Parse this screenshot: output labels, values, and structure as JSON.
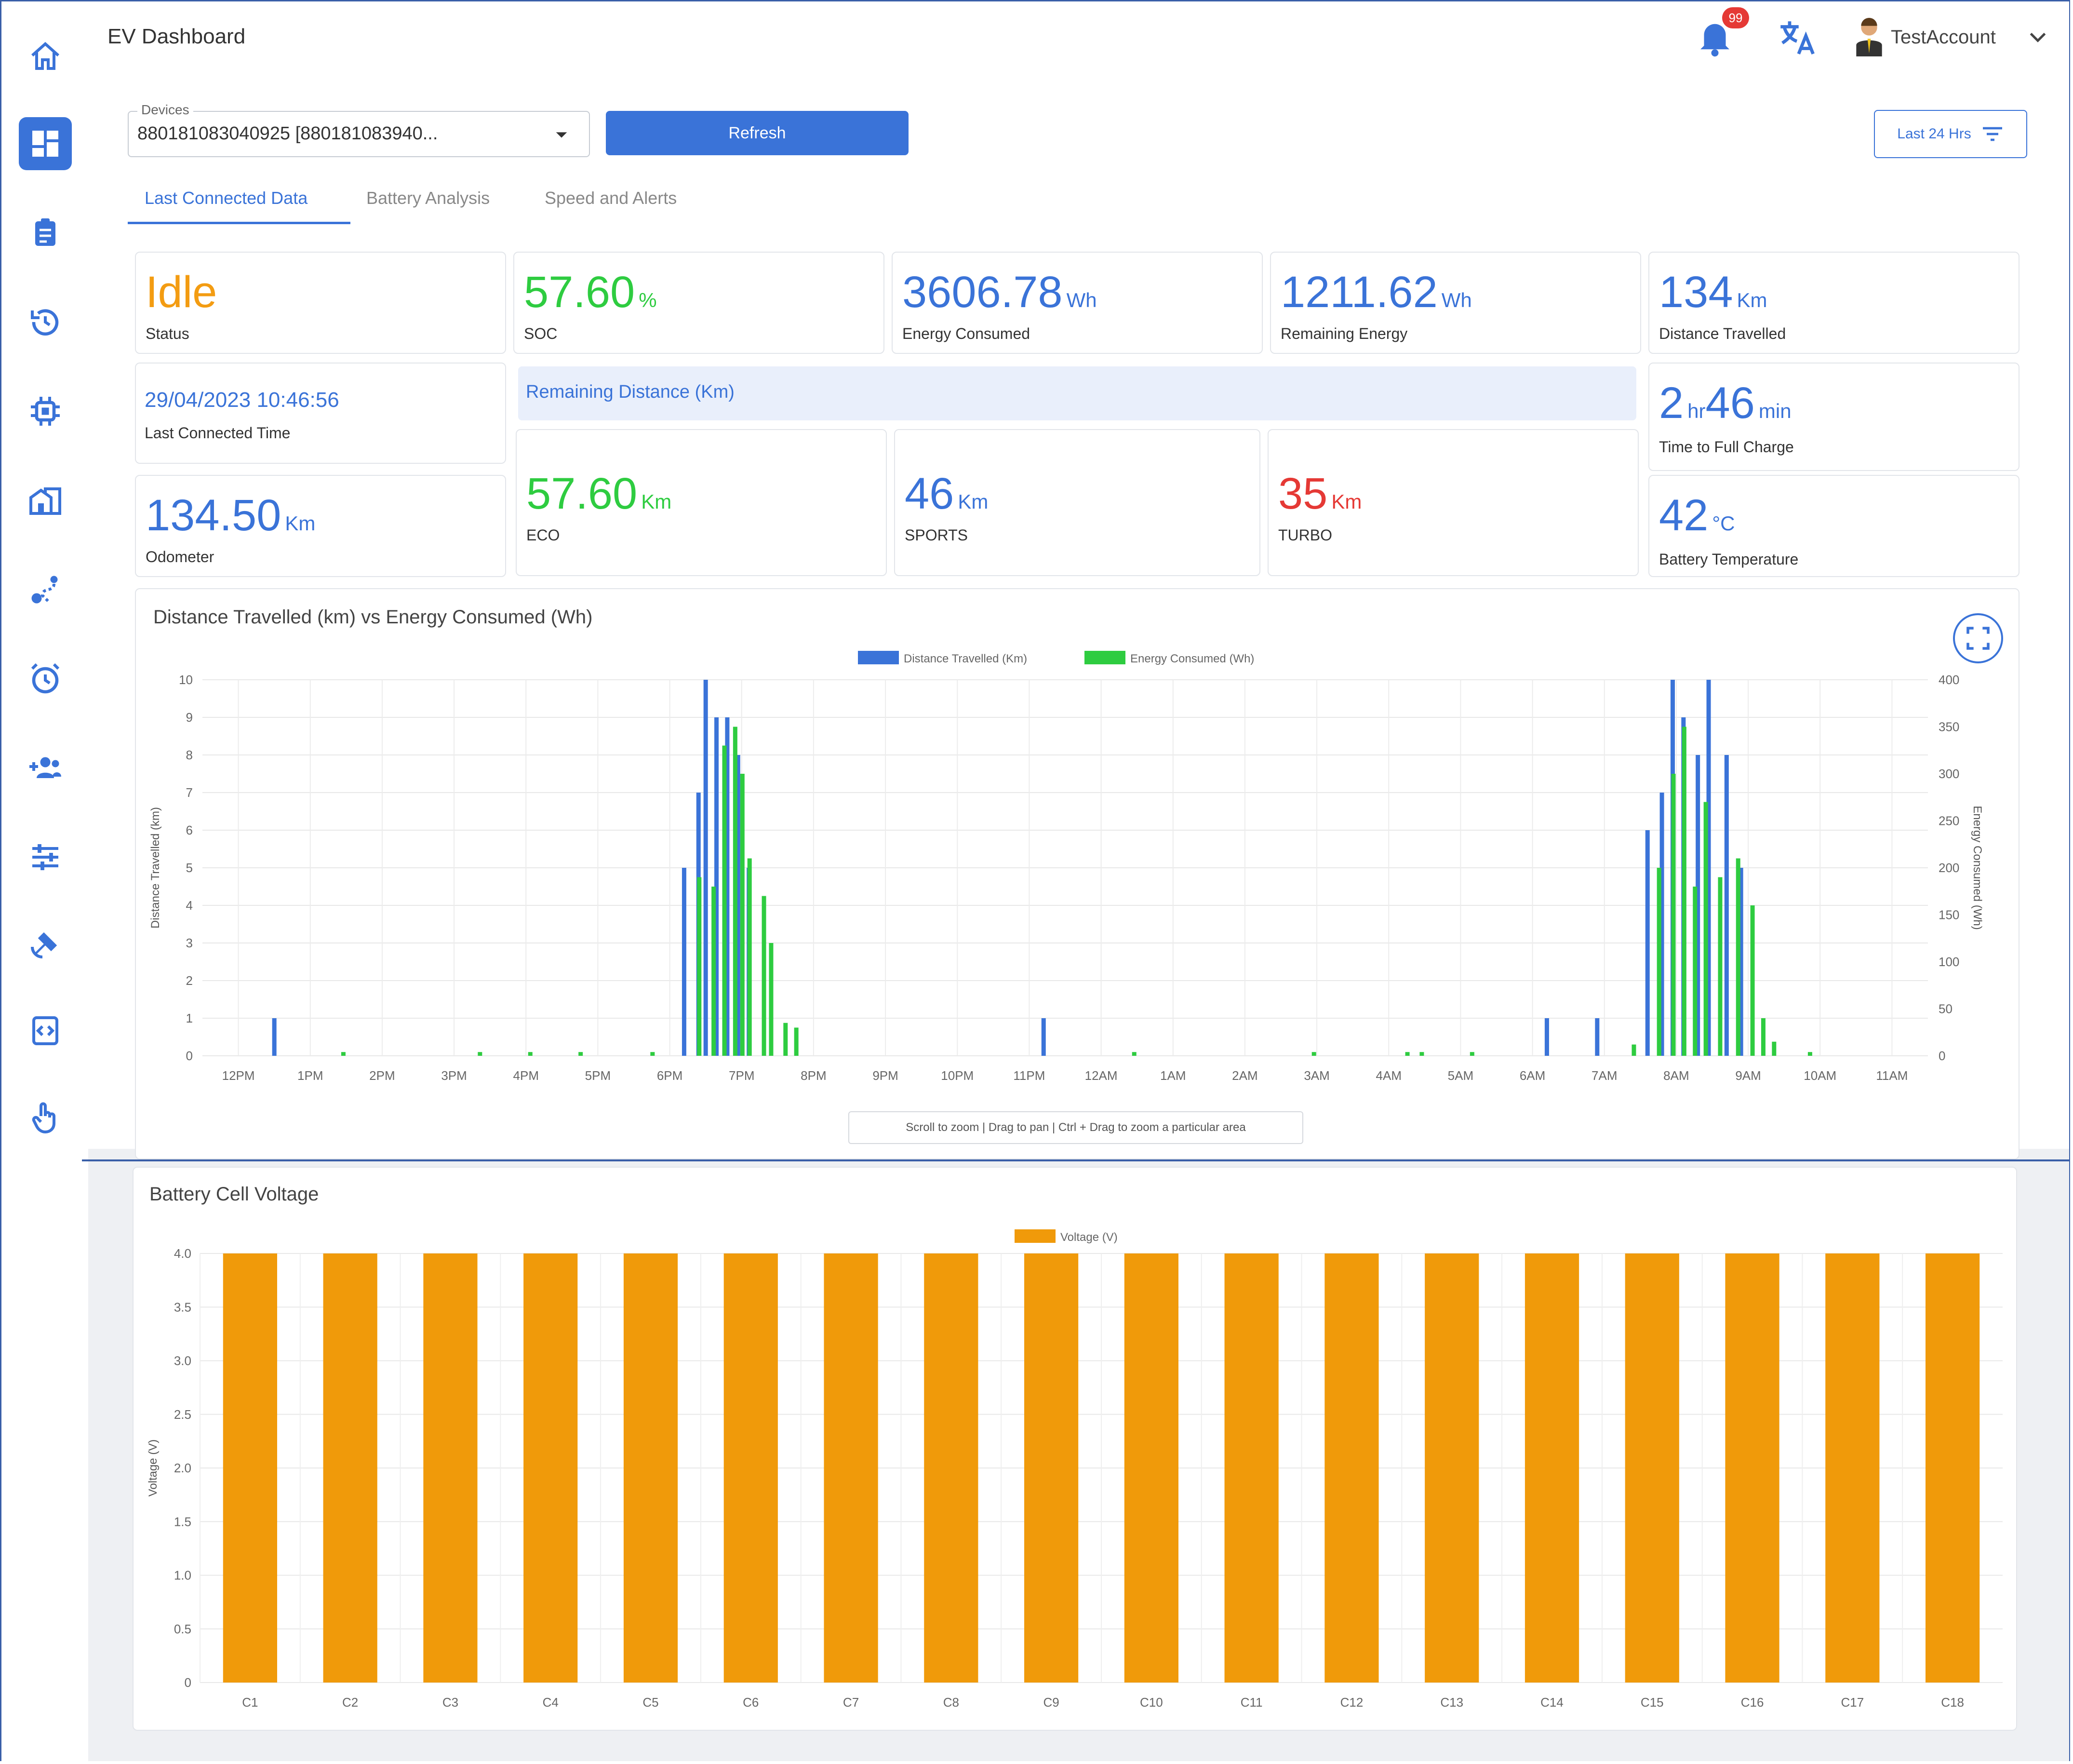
{
  "app": {
    "title": "EV Dashboard"
  },
  "header": {
    "notification_count": "99",
    "account_name": "TestAccount"
  },
  "sidebar": {
    "items": [
      {
        "name": "home-icon"
      },
      {
        "name": "dashboard-icon",
        "active": true
      },
      {
        "name": "clipboard-icon"
      },
      {
        "name": "history-icon"
      },
      {
        "name": "chip-icon"
      },
      {
        "name": "buildings-icon"
      },
      {
        "name": "route-icon"
      },
      {
        "name": "alarm-icon"
      },
      {
        "name": "group-add-icon"
      },
      {
        "name": "sliders-icon"
      },
      {
        "name": "satellite-icon"
      },
      {
        "name": "code-icon"
      },
      {
        "name": "touch-icon"
      }
    ]
  },
  "filters": {
    "device_label": "Devices",
    "device_value": "880181083040925 [880181083940...",
    "refresh_label": "Refresh",
    "range_label": "Last 24 Hrs"
  },
  "tabs": [
    {
      "label": "Last Connected Data",
      "active": true
    },
    {
      "label": "Battery Analysis",
      "active": false
    },
    {
      "label": "Speed and Alerts",
      "active": false
    }
  ],
  "stats": {
    "status": {
      "value": "Idle",
      "label": "Status"
    },
    "soc": {
      "value": "57.60",
      "unit": "%",
      "label": "SOC"
    },
    "energy_consumed": {
      "value": "3606.78",
      "unit": "Wh",
      "label": "Energy Consumed"
    },
    "remaining_energy": {
      "value": "1211.62",
      "unit": "Wh",
      "label": "Remaining Energy"
    },
    "distance_travelled": {
      "value": "134",
      "unit": "Km",
      "label": "Distance Travelled"
    },
    "last_connected": {
      "value": "29/04/2023 10:46:56",
      "label": "Last Connected Time"
    },
    "remaining_distance_title": "Remaining Distance (Km)",
    "time_to_full": {
      "hours": "2",
      "hours_unit": "hr",
      "minutes": "46",
      "minutes_unit": "min",
      "label": "Time to Full Charge"
    },
    "odometer": {
      "value": "134.50",
      "unit": "Km",
      "label": "Odometer"
    },
    "eco": {
      "value": "57.60",
      "unit": "Km",
      "label": "ECO"
    },
    "sports": {
      "value": "46",
      "unit": "Km",
      "label": "SPORTS"
    },
    "turbo": {
      "value": "35",
      "unit": "Km",
      "label": "TURBO"
    },
    "battery_temp": {
      "value": "42",
      "unit": "°C",
      "label": "Battery Temperature"
    }
  },
  "colors": {
    "primary": "#3a73d8",
    "green": "#2ecc40",
    "orange": "#f39c12",
    "red": "#e53935",
    "bar_orange": "#f09a0a"
  },
  "chart_data": [
    {
      "type": "bar",
      "title": "Distance Travelled (km) vs Energy Consumed (Wh)",
      "ylabel": "Distance Travelled (km)",
      "y2label": "Energy Consumed (Wh)",
      "ylim": [
        0,
        10
      ],
      "y2lim": [
        0,
        400
      ],
      "yticks": [
        "0",
        "1",
        "2",
        "3",
        "4",
        "5",
        "6",
        "7",
        "8",
        "9",
        "10"
      ],
      "y2ticks": [
        "0",
        "50",
        "100",
        "150",
        "200",
        "250",
        "300",
        "350",
        "400"
      ],
      "xticks": [
        "12PM",
        "1PM",
        "2PM",
        "3PM",
        "4PM",
        "5PM",
        "6PM",
        "7PM",
        "8PM",
        "9PM",
        "10PM",
        "11PM",
        "12AM",
        "1AM",
        "2AM",
        "3AM",
        "4AM",
        "5AM",
        "6AM",
        "7AM",
        "8AM",
        "9AM",
        "10AM",
        "11AM"
      ],
      "legend": "top-center",
      "hint": "Scroll to zoom  |  Drag to pan  |  Ctrl + Drag to zoom a particular area",
      "series": [
        {
          "name": "Distance Travelled (Km)",
          "color": "#3a73d8",
          "axis": "left",
          "points": [
            [
              0.5,
              1
            ],
            [
              6.2,
              5
            ],
            [
              6.4,
              7
            ],
            [
              6.5,
              10
            ],
            [
              6.65,
              9
            ],
            [
              6.8,
              9
            ],
            [
              6.95,
              8
            ],
            [
              7.1,
              5
            ],
            [
              11.2,
              1
            ],
            [
              18.2,
              1
            ],
            [
              18.9,
              1
            ],
            [
              19.6,
              6
            ],
            [
              19.8,
              7
            ],
            [
              19.95,
              10
            ],
            [
              20.1,
              9
            ],
            [
              20.3,
              8
            ],
            [
              20.45,
              10
            ],
            [
              20.7,
              8
            ],
            [
              20.9,
              5
            ]
          ]
        },
        {
          "name": "Energy Consumed (Wh)",
          "color": "#2ecc40",
          "axis": "right",
          "points": [
            [
              1.4,
              4
            ],
            [
              3.3,
              4
            ],
            [
              4,
              4
            ],
            [
              4.7,
              4
            ],
            [
              5.7,
              4
            ],
            [
              6.35,
              190
            ],
            [
              6.55,
              180
            ],
            [
              6.7,
              330
            ],
            [
              6.85,
              350
            ],
            [
              6.95,
              300
            ],
            [
              7.05,
              210
            ],
            [
              7.25,
              170
            ],
            [
              7.35,
              120
            ],
            [
              7.55,
              35
            ],
            [
              7.7,
              30
            ],
            [
              12.4,
              4
            ],
            [
              14.9,
              4
            ],
            [
              16.2,
              4
            ],
            [
              16.4,
              4
            ],
            [
              17.1,
              4
            ],
            [
              19.35,
              12
            ],
            [
              19.7,
              200
            ],
            [
              19.9,
              300
            ],
            [
              20.05,
              350
            ],
            [
              20.2,
              180
            ],
            [
              20.35,
              270
            ],
            [
              20.55,
              190
            ],
            [
              20.8,
              210
            ],
            [
              21.0,
              160
            ],
            [
              21.15,
              40
            ],
            [
              21.3,
              15
            ],
            [
              21.8,
              4
            ]
          ]
        }
      ]
    },
    {
      "type": "bar",
      "title": "Battery Cell Voltage",
      "ylabel": "Voltage (V)",
      "ylim": [
        0,
        4.0
      ],
      "yticks": [
        "0",
        "0.5",
        "1.0",
        "1.5",
        "2.0",
        "2.5",
        "3.0",
        "3.5",
        "4.0"
      ],
      "legend": "top-center",
      "series": [
        {
          "name": "Voltage (V)",
          "color": "#f09a0a"
        }
      ],
      "categories": [
        "C1",
        "C2",
        "C3",
        "C4",
        "C5",
        "C6",
        "C7",
        "C8",
        "C9",
        "C10",
        "C11",
        "C12",
        "C13",
        "C14",
        "C15",
        "C16",
        "C17",
        "C18"
      ],
      "values": [
        4.0,
        4.0,
        4.0,
        4.0,
        4.0,
        4.0,
        4.0,
        4.0,
        4.0,
        4.0,
        4.0,
        4.0,
        4.0,
        4.0,
        4.0,
        4.0,
        4.0,
        4.0
      ]
    }
  ]
}
